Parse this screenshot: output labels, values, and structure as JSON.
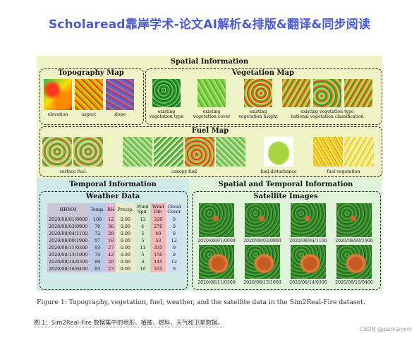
{
  "banner": "Scholaread靠岸学术-论文AI解析&排版&翻译&同步阅读",
  "figure": {
    "spatial": {
      "title": "Spatial Information",
      "topography": {
        "title": "Topography Map",
        "labels": [
          "elevation",
          "aspect",
          "slope"
        ]
      },
      "vegetation": {
        "title": "Vegetation Map",
        "labels": [
          [
            "existing",
            "vegetation type"
          ],
          [
            "existing",
            "vegetation cover"
          ],
          [
            "existing",
            "vegetation height"
          ],
          [
            "existing vegetation type",
            "national vegetation classification"
          ]
        ]
      },
      "fuel": {
        "title": "Fuel Map",
        "labels": [
          "surface fuel",
          "canopy fuel",
          "fuel disturbance",
          "fuel vegetation"
        ]
      }
    },
    "temporal": {
      "title": "Temporal Information",
      "weather_title": "Weather Data",
      "columns": [
        "HHMM",
        "Temp.",
        "RH",
        "Precip.",
        "Wind Spd.",
        "Wind Dir.",
        "Cloud Cover"
      ],
      "rows": [
        [
          "2020/08/01/0000",
          "100",
          "12",
          "0.00",
          "13",
          "320",
          "0"
        ],
        [
          "2020/08/03/0900",
          "70",
          "36",
          "0.00",
          "4",
          "270",
          "0"
        ],
        [
          "2020/08/04/1100",
          "72",
          "28",
          "0.00",
          "5",
          "40",
          "0"
        ],
        [
          "2020/08/09/1900",
          "97",
          "18",
          "0.00",
          "5",
          "53",
          "12"
        ],
        [
          "2020/08/11/0300",
          "93",
          "27",
          "0.00",
          "11",
          "335",
          "0"
        ],
        [
          "2020/08/13/1000",
          "74",
          "42",
          "0.00",
          "5",
          "150",
          "0"
        ],
        [
          "2020/08/14/0300",
          "89",
          "20",
          "0.00",
          "3",
          "145",
          "12"
        ],
        [
          "2020/08/16/0400",
          "85",
          "23",
          "0.00",
          "10",
          "335",
          "0"
        ]
      ]
    },
    "spatiotemporal": {
      "title": "Spatial and Temporal Information",
      "satellite_title": "Satellite Images",
      "dates": [
        "2020/08/01/0000",
        "2020/08/03/0900",
        "2020/08/04/1100",
        "2020/08/09/1900",
        "2020/08/11/0300",
        "2020/08/13/1000",
        "2020/08/14/0300",
        "2020/08/16/0400"
      ]
    }
  },
  "caption_en": "Figure 1: Topography, vegetation, fuel, weather, and the satellite data in the Sim2Real-Fire dataset.",
  "caption_zh": "图 1：Sim2Real-Fire 数据集中的地形、植被、燃料、天气和卫星数据。",
  "watermark": "CSDN @paixiaoxin"
}
